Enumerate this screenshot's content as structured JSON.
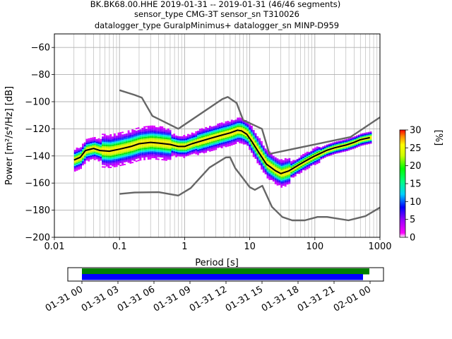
{
  "title": {
    "line1": "BK.BK68.00.HHE   2019-01-31 -- 2019-01-31  (46/46 segments)",
    "line2": "sensor_type CMG-3T sensor_sn T310026",
    "line3": "datalogger_type GuralpMinimus+ datalogger_sn MINP-D959"
  },
  "chart_data": [
    {
      "type": "heatmap",
      "subtype": "probabilistic-power-spectral-density",
      "xlabel": "Period [s]",
      "ylabel": "Power [m²/s⁴/Hz] [dB]",
      "x_scale": "log",
      "xlim": [
        0.01,
        1000
      ],
      "ylim": [
        -200,
        -50
      ],
      "x_ticks": [
        0.01,
        0.1,
        1,
        10,
        100,
        1000
      ],
      "x_tick_labels": [
        "0.01",
        "0.1",
        "1",
        "10",
        "100",
        "1000"
      ],
      "y_ticks": [
        -200,
        -180,
        -160,
        -140,
        -120,
        -100,
        -80,
        -60
      ],
      "y_tick_labels": [
        "−200",
        "−180",
        "−160",
        "−140",
        "−120",
        "−100",
        "−80",
        "−60"
      ],
      "grid": true,
      "colorbar": {
        "label": "[%]",
        "range": [
          0,
          30
        ],
        "ticks": [
          0,
          5,
          10,
          15,
          20,
          25,
          30
        ],
        "colormap": "pqlx"
      },
      "mode_curve": [
        [
          0.02,
          -143
        ],
        [
          0.025,
          -141
        ],
        [
          0.03,
          -136
        ],
        [
          0.04,
          -134.5
        ],
        [
          0.05,
          -136
        ],
        [
          0.07,
          -136.5
        ],
        [
          0.1,
          -135
        ],
        [
          0.15,
          -133
        ],
        [
          0.2,
          -131
        ],
        [
          0.3,
          -130
        ],
        [
          0.4,
          -130.5
        ],
        [
          0.6,
          -131.5
        ],
        [
          0.8,
          -133
        ],
        [
          1.0,
          -133
        ],
        [
          1.3,
          -131
        ],
        [
          1.8,
          -129
        ],
        [
          2.5,
          -127
        ],
        [
          3.5,
          -125
        ],
        [
          5,
          -123
        ],
        [
          6.5,
          -121
        ],
        [
          7.5,
          -121.5
        ],
        [
          9,
          -124
        ],
        [
          11,
          -130
        ],
        [
          14,
          -138
        ],
        [
          18,
          -146
        ],
        [
          25,
          -151
        ],
        [
          30,
          -153
        ],
        [
          40,
          -151
        ],
        [
          55,
          -147
        ],
        [
          70,
          -144
        ],
        [
          100,
          -140
        ],
        [
          150,
          -136
        ],
        [
          200,
          -134
        ],
        [
          300,
          -132
        ],
        [
          400,
          -130
        ],
        [
          500,
          -128
        ],
        [
          700,
          -126.5
        ]
      ],
      "nhnm": [
        [
          0.1,
          -91.5
        ],
        [
          0.17,
          -95
        ],
        [
          0.22,
          -97
        ],
        [
          0.32,
          -110.5
        ],
        [
          0.8,
          -120
        ],
        [
          3.8,
          -98
        ],
        [
          4.6,
          -96.5
        ],
        [
          6.3,
          -101
        ],
        [
          7.9,
          -113.5
        ],
        [
          15.4,
          -120
        ],
        [
          20,
          -138.5
        ],
        [
          354.8,
          -126
        ],
        [
          1000,
          -111.5
        ]
      ],
      "nlnm": [
        [
          0.1,
          -168
        ],
        [
          0.17,
          -167
        ],
        [
          0.4,
          -166.7
        ],
        [
          0.8,
          -169.2
        ],
        [
          1.24,
          -163.7
        ],
        [
          2.4,
          -148.6
        ],
        [
          4.3,
          -141.1
        ],
        [
          5,
          -141
        ],
        [
          6,
          -149
        ],
        [
          10,
          -163
        ],
        [
          12,
          -165
        ],
        [
          15.6,
          -162
        ],
        [
          21.9,
          -177.5
        ],
        [
          31.6,
          -185
        ],
        [
          45,
          -187.5
        ],
        [
          70,
          -187.5
        ],
        [
          110,
          -185
        ],
        [
          154.5,
          -185
        ],
        [
          328.6,
          -187.5
        ],
        [
          600,
          -184.4
        ],
        [
          1000,
          -178
        ]
      ]
    },
    {
      "type": "timeline",
      "description_free": true,
      "xlim_hours": [
        0,
        24
      ],
      "tick_labels": [
        "01-31 00",
        "01-31 03",
        "01-31 06",
        "01-31 09",
        "01-31 12",
        "01-31 15",
        "01-31 18",
        "01-31 21",
        "02-01 00"
      ],
      "tick_hours": [
        0,
        3,
        6,
        9,
        12,
        15,
        18,
        21,
        24
      ],
      "bars": [
        {
          "color": "#008000",
          "start_hour": 0,
          "end_hour": 23.5
        },
        {
          "color": "#0000ff",
          "start_hour": 0,
          "end_hour": 23.5
        }
      ]
    }
  ]
}
